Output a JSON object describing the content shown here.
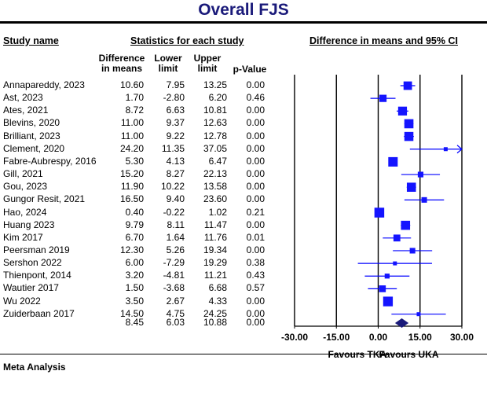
{
  "chart_data": {
    "type": "forest",
    "title": "Overall FJS",
    "headers": {
      "study_name": "Study name",
      "statistics": "Statistics for each study",
      "ci": "Difference in means and 95% CI",
      "difference": "Difference in means",
      "lower": "Lower limit",
      "upper": "Upper limit",
      "pvalue": "p-Value"
    },
    "studies": [
      {
        "name": "Annapareddy, 2023",
        "diff": "10.60",
        "lower": "7.95",
        "upper": "13.25",
        "p": "0.00"
      },
      {
        "name": "Ast, 2023",
        "diff": "1.70",
        "lower": "-2.80",
        "upper": "6.20",
        "p": "0.46"
      },
      {
        "name": "Ates, 2021",
        "diff": "8.72",
        "lower": "6.63",
        "upper": "10.81",
        "p": "0.00"
      },
      {
        "name": "Blevins, 2020",
        "diff": "11.00",
        "lower": "9.37",
        "upper": "12.63",
        "p": "0.00"
      },
      {
        "name": "Brilliant, 2023",
        "diff": "11.00",
        "lower": "9.22",
        "upper": "12.78",
        "p": "0.00"
      },
      {
        "name": "Clement, 2020",
        "diff": "24.20",
        "lower": "11.35",
        "upper": "37.05",
        "p": "0.00"
      },
      {
        "name": "Fabre-Aubrespy, 2016",
        "diff": "5.30",
        "lower": "4.13",
        "upper": "6.47",
        "p": "0.00"
      },
      {
        "name": "Gill, 2021",
        "diff": "15.20",
        "lower": "8.27",
        "upper": "22.13",
        "p": "0.00"
      },
      {
        "name": "Gou, 2023",
        "diff": "11.90",
        "lower": "10.22",
        "upper": "13.58",
        "p": "0.00"
      },
      {
        "name": "Gungor Resit, 2021",
        "diff": "16.50",
        "lower": "9.40",
        "upper": "23.60",
        "p": "0.00"
      },
      {
        "name": "Hao, 2024",
        "diff": "0.40",
        "lower": "-0.22",
        "upper": "1.02",
        "p": "0.21"
      },
      {
        "name": "Huang 2023",
        "diff": "9.79",
        "lower": "8.11",
        "upper": "11.47",
        "p": "0.00"
      },
      {
        "name": "Kim 2017",
        "diff": "6.70",
        "lower": "1.64",
        "upper": "11.76",
        "p": "0.01"
      },
      {
        "name": "Peersman 2019",
        "diff": "12.30",
        "lower": "5.26",
        "upper": "19.34",
        "p": "0.00"
      },
      {
        "name": "Sershon 2022",
        "diff": "6.00",
        "lower": "-7.29",
        "upper": "19.29",
        "p": "0.38"
      },
      {
        "name": "Thienpont, 2014",
        "diff": "3.20",
        "lower": "-4.81",
        "upper": "11.21",
        "p": "0.43"
      },
      {
        "name": "Wautier 2017",
        "diff": "1.50",
        "lower": "-3.68",
        "upper": "6.68",
        "p": "0.57"
      },
      {
        "name": "Wu 2022",
        "diff": "3.50",
        "lower": "2.67",
        "upper": "4.33",
        "p": "0.00"
      },
      {
        "name": "Zuiderbaan 2017",
        "diff": "14.50",
        "lower": "4.75",
        "upper": "24.25",
        "p": "0.00"
      }
    ],
    "summary": {
      "diff": "8.45",
      "lower": "6.03",
      "upper": "10.88",
      "p": "0.00"
    },
    "axis": {
      "min": -30,
      "max": 30,
      "ticks": [
        "-30.00",
        "-15.00",
        "0.00",
        "15.00",
        "30.00"
      ]
    },
    "axis_labels": {
      "left": "Favours TKA",
      "right": "Favours UKA"
    },
    "footer": "Meta Analysis",
    "colors": {
      "title": "#1a1a7a",
      "marker": "#1414ff",
      "summary": "#1a1a7a",
      "line": "#0000ff"
    }
  }
}
